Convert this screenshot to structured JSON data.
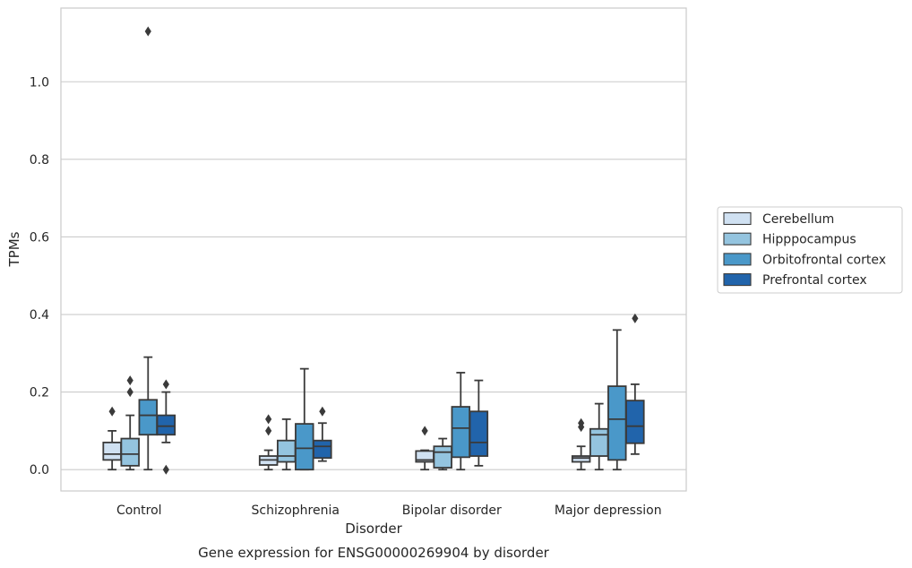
{
  "chart_data": {
    "type": "box",
    "title": "Gene expression for ENSG00000269904 by disorder",
    "xlabel": "Disorder",
    "ylabel": "TPMs",
    "ylim": [
      -0.055,
      1.19
    ],
    "yticks": [
      "0.0",
      "0.2",
      "0.4",
      "0.6",
      "0.8",
      "1.0"
    ],
    "grid": "horizontal",
    "legend_position": "right",
    "categories": [
      "Control",
      "Schizophrenia",
      "Bipolar disorder",
      "Major depression"
    ],
    "series": [
      {
        "name": "Cerebellum",
        "color": "#d0e1f2",
        "boxes": [
          {
            "whisker_low": 0.0,
            "q1": 0.025,
            "median": 0.04,
            "q3": 0.07,
            "whisker_high": 0.1,
            "outliers": [
              0.15
            ]
          },
          {
            "whisker_low": 0.0,
            "q1": 0.012,
            "median": 0.025,
            "q3": 0.035,
            "whisker_high": 0.05,
            "outliers": [
              0.1,
              0.13
            ]
          },
          {
            "whisker_low": 0.0,
            "q1": 0.02,
            "median": 0.025,
            "q3": 0.048,
            "whisker_high": 0.05,
            "outliers": [
              0.1
            ]
          },
          {
            "whisker_low": 0.0,
            "q1": 0.02,
            "median": 0.03,
            "q3": 0.035,
            "whisker_high": 0.06,
            "outliers": [
              0.11,
              0.12
            ]
          }
        ]
      },
      {
        "name": "Hipppocampus",
        "color": "#94c4df",
        "boxes": [
          {
            "whisker_low": 0.0,
            "q1": 0.01,
            "median": 0.04,
            "q3": 0.08,
            "whisker_high": 0.14,
            "outliers": [
              0.2,
              0.23
            ]
          },
          {
            "whisker_low": 0.0,
            "q1": 0.02,
            "median": 0.035,
            "q3": 0.075,
            "whisker_high": 0.13,
            "outliers": []
          },
          {
            "whisker_low": 0.0,
            "q1": 0.005,
            "median": 0.045,
            "q3": 0.06,
            "whisker_high": 0.08,
            "outliers": []
          },
          {
            "whisker_low": 0.0,
            "q1": 0.035,
            "median": 0.09,
            "q3": 0.105,
            "whisker_high": 0.17,
            "outliers": []
          }
        ]
      },
      {
        "name": "Orbitofrontal cortex",
        "color": "#4a98c9",
        "boxes": [
          {
            "whisker_low": 0.0,
            "q1": 0.09,
            "median": 0.14,
            "q3": 0.18,
            "whisker_high": 0.29,
            "outliers": [
              1.13
            ]
          },
          {
            "whisker_low": 0.0,
            "q1": 0.0,
            "median": 0.055,
            "q3": 0.118,
            "whisker_high": 0.26,
            "outliers": []
          },
          {
            "whisker_low": 0.0,
            "q1": 0.032,
            "median": 0.107,
            "q3": 0.162,
            "whisker_high": 0.25,
            "outliers": []
          },
          {
            "whisker_low": 0.0,
            "q1": 0.025,
            "median": 0.13,
            "q3": 0.215,
            "whisker_high": 0.36,
            "outliers": []
          }
        ]
      },
      {
        "name": "Prefrontal cortex",
        "color": "#2164ab",
        "boxes": [
          {
            "whisker_low": 0.07,
            "q1": 0.09,
            "median": 0.112,
            "q3": 0.14,
            "whisker_high": 0.2,
            "outliers": [
              0.0,
              0.22
            ]
          },
          {
            "whisker_low": 0.022,
            "q1": 0.03,
            "median": 0.06,
            "q3": 0.075,
            "whisker_high": 0.12,
            "outliers": [
              0.15
            ]
          },
          {
            "whisker_low": 0.01,
            "q1": 0.035,
            "median": 0.07,
            "q3": 0.15,
            "whisker_high": 0.23,
            "outliers": []
          },
          {
            "whisker_low": 0.04,
            "q1": 0.068,
            "median": 0.112,
            "q3": 0.178,
            "whisker_high": 0.22,
            "outliers": [
              0.39
            ]
          }
        ]
      }
    ]
  }
}
